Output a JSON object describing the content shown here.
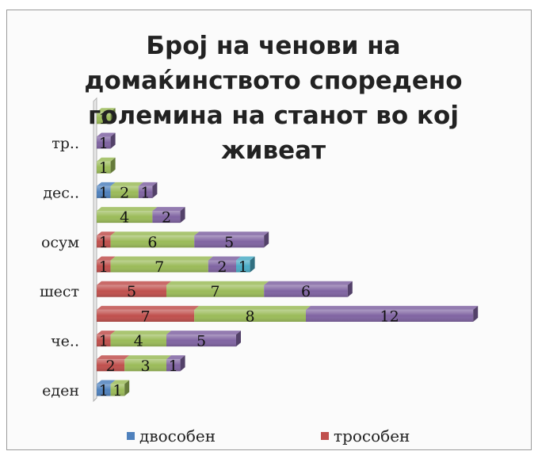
{
  "chart_data": {
    "type": "bar",
    "orientation": "horizontal",
    "stacked": true,
    "three_d": true,
    "title": "Број на ченови на домаќинството споредено големина на станот во кој живеат",
    "categories": [
      "еден",
      "",
      "че..",
      "",
      "шест",
      "",
      "осум",
      "",
      "дес..",
      "",
      "тр..",
      ""
    ],
    "series": [
      {
        "name": "двособен",
        "color": "#4f81bd",
        "values": [
          1,
          0,
          0,
          0,
          0,
          0,
          0,
          0,
          1,
          0,
          0,
          0
        ]
      },
      {
        "name": "трособен",
        "color": "#c0504d",
        "values": [
          0,
          2,
          1,
          7,
          5,
          1,
          1,
          0,
          0,
          0,
          0,
          0
        ]
      },
      {
        "name": "",
        "color": "#9bbb59",
        "values": [
          1,
          3,
          4,
          8,
          7,
          7,
          6,
          4,
          2,
          1,
          0,
          1
        ]
      },
      {
        "name": "",
        "color": "#8064a2",
        "values": [
          0,
          1,
          5,
          12,
          6,
          2,
          5,
          2,
          1,
          0,
          1,
          0
        ]
      },
      {
        "name": "",
        "color": "#4bacc6",
        "values": [
          0,
          0,
          0,
          0,
          0,
          1,
          0,
          0,
          0,
          0,
          0,
          0
        ]
      }
    ],
    "legend_position": "bottom",
    "grid": false
  }
}
